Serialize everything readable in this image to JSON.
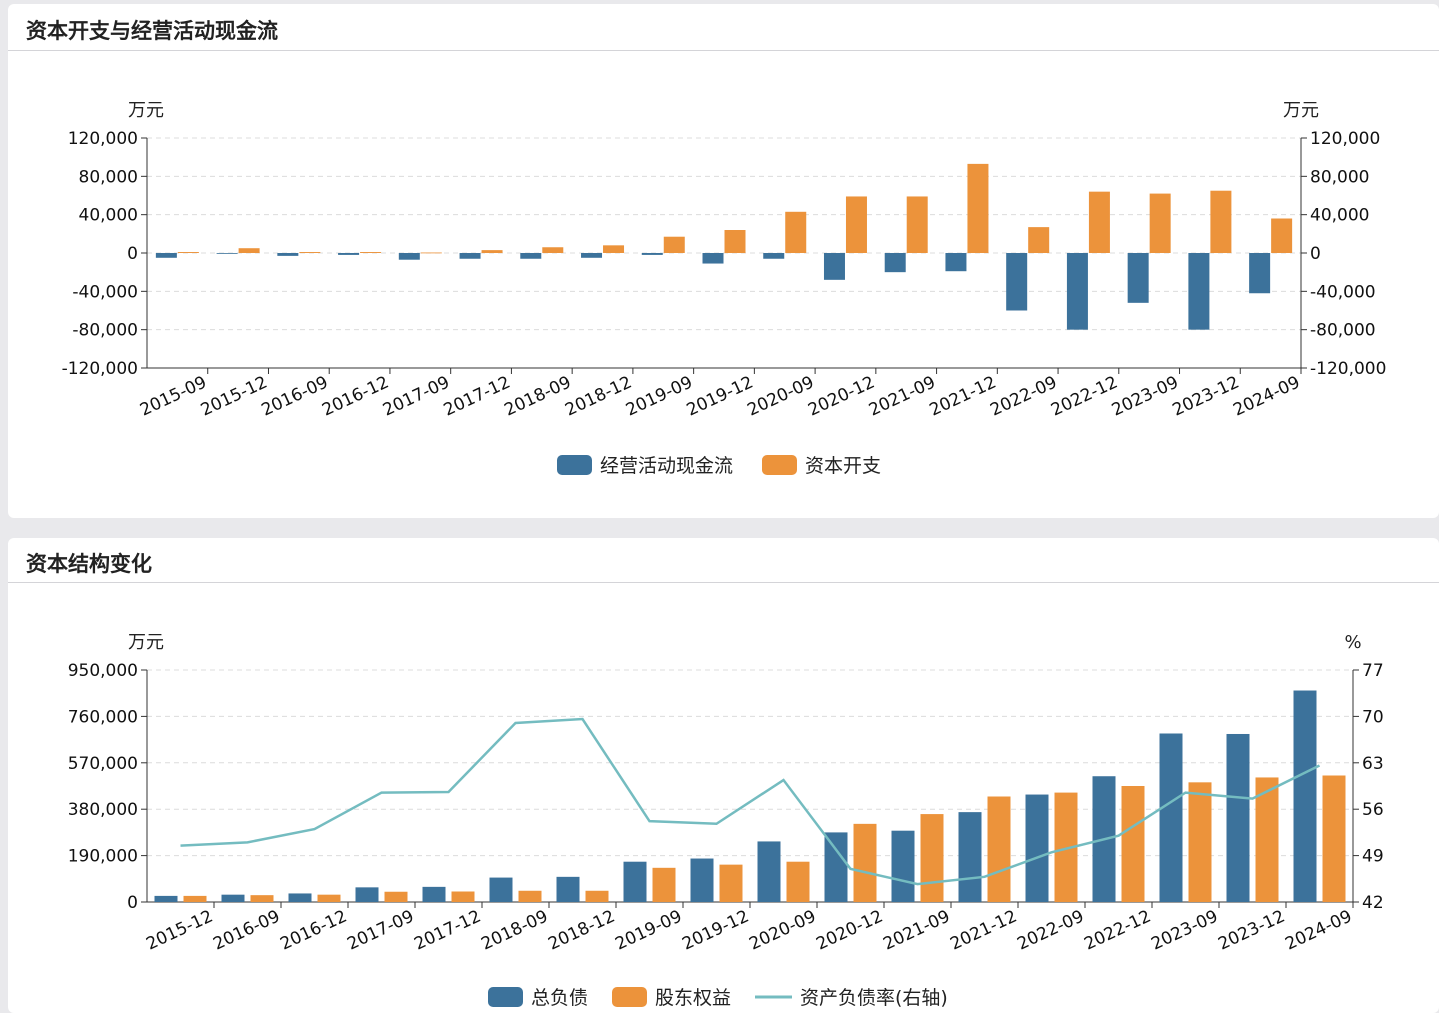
{
  "panels": {
    "capex": {
      "title": "资本开支与经营活动现金流"
    },
    "structure": {
      "title": "资本结构变化"
    }
  },
  "colors": {
    "blue": "#3c729b",
    "orange": "#ec933b",
    "line": "#74bcc0"
  },
  "chart_data": [
    {
      "type": "bar",
      "categories": [
        "2015-09",
        "2015-12",
        "2016-09",
        "2016-12",
        "2017-09",
        "2017-12",
        "2018-09",
        "2018-12",
        "2019-09",
        "2019-12",
        "2020-09",
        "2020-12",
        "2021-09",
        "2021-12",
        "2022-09",
        "2022-12",
        "2023-09",
        "2023-12",
        "2024-09"
      ],
      "series": [
        {
          "name": "经营活动现金流",
          "values": [
            -5000,
            0,
            -3000,
            -2000,
            -7000,
            -6000,
            -6000,
            -5000,
            -2000,
            -11000,
            -6000,
            -28000,
            -20000,
            -19000,
            -60000,
            -80000,
            -52000,
            -80000,
            -42000
          ]
        },
        {
          "name": "资本开支",
          "values": [
            1000,
            5000,
            1000,
            1000,
            500,
            3000,
            6000,
            8000,
            17000,
            24000,
            43000,
            59000,
            59000,
            93000,
            27000,
            64000,
            62000,
            65000,
            36000
          ]
        }
      ],
      "yunit_left": "万元",
      "yunit_right": "万元",
      "ylim": [
        -120000,
        120000
      ],
      "yticks": [
        -120000,
        -80000,
        -40000,
        0,
        40000,
        80000,
        120000
      ],
      "ytick_labels": [
        "-120,000",
        "-80,000",
        "-40,000",
        "0",
        "40,000",
        "80,000",
        "120,000"
      ],
      "legend": "bottom-center"
    },
    {
      "type": "bar",
      "categories": [
        "2015-12",
        "2016-09",
        "2016-12",
        "2017-09",
        "2017-12",
        "2018-09",
        "2018-12",
        "2019-09",
        "2019-12",
        "2020-09",
        "2020-12",
        "2021-09",
        "2021-12",
        "2022-09",
        "2022-12",
        "2023-09",
        "2023-12",
        "2024-09"
      ],
      "series": [
        {
          "name": "总负债",
          "type": "bar",
          "values": [
            25000,
            30000,
            35000,
            60000,
            62000,
            100000,
            103000,
            165000,
            178000,
            248000,
            285000,
            292000,
            368000,
            440000,
            515000,
            690000,
            688000,
            866000
          ]
        },
        {
          "name": "股东权益",
          "type": "bar",
          "values": [
            25000,
            28000,
            30000,
            42000,
            43000,
            46000,
            46000,
            140000,
            153000,
            165000,
            320000,
            360000,
            432000,
            448000,
            475000,
            490000,
            510000,
            518000
          ]
        },
        {
          "name": "资产负债率(右轴)",
          "type": "line",
          "axis": "right",
          "values": [
            50.5,
            51,
            53,
            58.5,
            58.6,
            69,
            69.6,
            54.2,
            53.8,
            60.4,
            47,
            44.7,
            45.8,
            49.5,
            52,
            58.5,
            57.6,
            62.6
          ]
        }
      ],
      "yunit_left": "万元",
      "yunit_right": "%",
      "ylim_left": [
        0,
        950000
      ],
      "yticks_left": [
        0,
        190000,
        380000,
        570000,
        760000,
        950000
      ],
      "ytick_labels_left": [
        "0",
        "190,000",
        "380,000",
        "570,000",
        "760,000",
        "950,000"
      ],
      "ylim_right": [
        42,
        77
      ],
      "yticks_right": [
        42,
        49,
        56,
        63,
        70,
        77
      ],
      "ytick_labels_right": [
        "42",
        "49",
        "56",
        "63",
        "70",
        "77"
      ],
      "legend": "bottom-center"
    }
  ]
}
